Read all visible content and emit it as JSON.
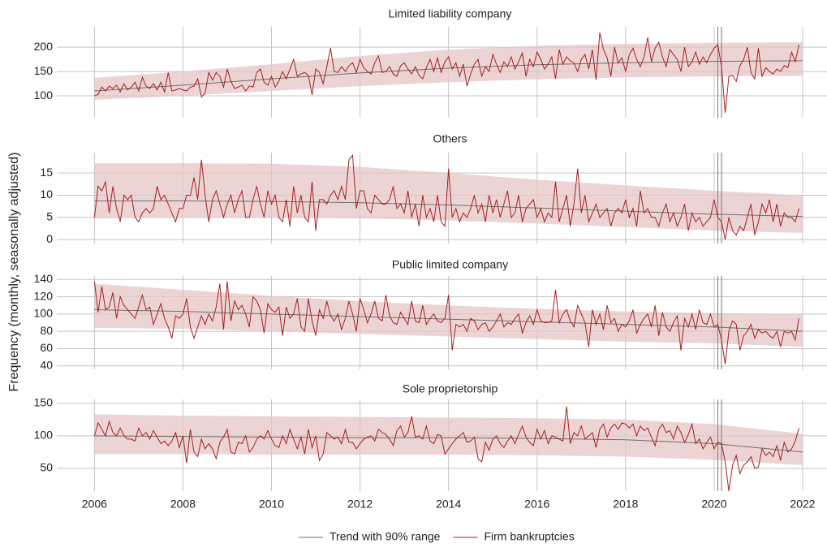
{
  "chart_data": {
    "type": "line",
    "y_label": "Frequency (monthly, seasonally adjusted)",
    "xlim": [
      2005.15,
      2022.55
    ],
    "xticks": [
      2006,
      2008,
      2010,
      2012,
      2014,
      2016,
      2018,
      2020,
      2022
    ],
    "vlines": [
      2020.083,
      2020.167
    ],
    "grid": true,
    "legend": [
      {
        "name": "Trend with 90% range",
        "color": "#6e6e6e",
        "band_color": "#e6c6c6"
      },
      {
        "name": "Firm bankruptcies",
        "color": "#a3201f"
      }
    ],
    "x": [
      2006,
      2006.083,
      2006.167,
      2006.25,
      2006.333,
      2006.417,
      2006.5,
      2006.583,
      2006.667,
      2006.75,
      2006.833,
      2006.917,
      2007,
      2007.083,
      2007.167,
      2007.25,
      2007.333,
      2007.417,
      2007.5,
      2007.583,
      2007.667,
      2007.75,
      2007.833,
      2007.917,
      2008,
      2008.083,
      2008.167,
      2008.25,
      2008.333,
      2008.417,
      2008.5,
      2008.583,
      2008.667,
      2008.75,
      2008.833,
      2008.917,
      2009,
      2009.083,
      2009.167,
      2009.25,
      2009.333,
      2009.417,
      2009.5,
      2009.583,
      2009.667,
      2009.75,
      2009.833,
      2009.917,
      2010,
      2010.083,
      2010.167,
      2010.25,
      2010.333,
      2010.417,
      2010.5,
      2010.583,
      2010.667,
      2010.75,
      2010.833,
      2010.917,
      2011,
      2011.083,
      2011.167,
      2011.25,
      2011.333,
      2011.417,
      2011.5,
      2011.583,
      2011.667,
      2011.75,
      2011.833,
      2011.917,
      2012,
      2012.083,
      2012.167,
      2012.25,
      2012.333,
      2012.417,
      2012.5,
      2012.583,
      2012.667,
      2012.75,
      2012.833,
      2012.917,
      2013,
      2013.083,
      2013.167,
      2013.25,
      2013.333,
      2013.417,
      2013.5,
      2013.583,
      2013.667,
      2013.75,
      2013.833,
      2013.917,
      2014,
      2014.083,
      2014.167,
      2014.25,
      2014.333,
      2014.417,
      2014.5,
      2014.583,
      2014.667,
      2014.75,
      2014.833,
      2014.917,
      2015,
      2015.083,
      2015.167,
      2015.25,
      2015.333,
      2015.417,
      2015.5,
      2015.583,
      2015.667,
      2015.75,
      2015.833,
      2015.917,
      2016,
      2016.083,
      2016.167,
      2016.25,
      2016.333,
      2016.417,
      2016.5,
      2016.583,
      2016.667,
      2016.75,
      2016.833,
      2016.917,
      2017,
      2017.083,
      2017.167,
      2017.25,
      2017.333,
      2017.417,
      2017.5,
      2017.583,
      2017.667,
      2017.75,
      2017.833,
      2017.917,
      2018,
      2018.083,
      2018.167,
      2018.25,
      2018.333,
      2018.417,
      2018.5,
      2018.583,
      2018.667,
      2018.75,
      2018.833,
      2018.917,
      2019,
      2019.083,
      2019.167,
      2019.25,
      2019.333,
      2019.417,
      2019.5,
      2019.583,
      2019.667,
      2019.75,
      2019.833,
      2019.917,
      2020,
      2020.083,
      2020.167,
      2020.25,
      2020.333,
      2020.417,
      2020.5,
      2020.583,
      2020.667,
      2020.75,
      2020.833,
      2020.917,
      2021,
      2021.083,
      2021.167,
      2021.25,
      2021.333,
      2021.417,
      2021.5,
      2021.583,
      2021.667,
      2021.75,
      2021.833,
      2021.917
    ],
    "panels": [
      {
        "title": "Limited liability company",
        "ylim": [
          55,
          242
        ],
        "yticks": [
          100,
          150,
          200
        ],
        "values": [
          100,
          103,
          118,
          110,
          120,
          115,
          122,
          108,
          125,
          112,
          118,
          128,
          110,
          138,
          120,
          115,
          125,
          112,
          128,
          108,
          148,
          110,
          112,
          115,
          112,
          110,
          118,
          120,
          135,
          98,
          105,
          148,
          132,
          148,
          140,
          118,
          155,
          130,
          115,
          118,
          122,
          110,
          120,
          118,
          148,
          155,
          128,
          122,
          140,
          118,
          130,
          150,
          135,
          155,
          175,
          140,
          145,
          148,
          142,
          102,
          155,
          148,
          125,
          160,
          198,
          150,
          148,
          160,
          150,
          162,
          168,
          148,
          175,
          158,
          150,
          145,
          168,
          182,
          148,
          150,
          160,
          145,
          140,
          162,
          168,
          155,
          145,
          160,
          142,
          135,
          158,
          175,
          150,
          178,
          148,
          170,
          180,
          155,
          168,
          140,
          165,
          120,
          145,
          165,
          175,
          140,
          160,
          150,
          185,
          165,
          148,
          170,
          160,
          180,
          155,
          170,
          188,
          140,
          175,
          160,
          190,
          175,
          155,
          165,
          180,
          135,
          195,
          165,
          180,
          172,
          168,
          150,
          175,
          185,
          155,
          195,
          133,
          230,
          195,
          178,
          140,
          200,
          168,
          178,
          150,
          185,
          198,
          175,
          160,
          180,
          220,
          170,
          198,
          210,
          180,
          160,
          195,
          185,
          175,
          150,
          200,
          160,
          170,
          190,
          165,
          180,
          168,
          185,
          198,
          205,
          160,
          65,
          140,
          142,
          130,
          162,
          175,
          200,
          148,
          135,
          198,
          140,
          158,
          150,
          145,
          155,
          150,
          162,
          158,
          190,
          170,
          205
        ],
        "trend": {
          "x": [
            2006,
            2008,
            2010,
            2012,
            2014,
            2016,
            2018,
            2020,
            2022
          ],
          "values": [
            110,
            122,
            135,
            147,
            157,
            164,
            168,
            171,
            172
          ],
          "lower": [
            92,
            100,
            110,
            120,
            128,
            134,
            138,
            140,
            141
          ],
          "upper": [
            137,
            150,
            165,
            182,
            195,
            203,
            207,
            209,
            210
          ]
        }
      },
      {
        "title": "Others",
        "ylim": [
          -0.9,
          19.6
        ],
        "yticks": [
          0,
          5,
          10,
          15
        ],
        "values": [
          5,
          12,
          11,
          13,
          6,
          12,
          7,
          4,
          10,
          9,
          10,
          5,
          4,
          6,
          7,
          6,
          7,
          12,
          9,
          10,
          8,
          6,
          4,
          7,
          7,
          10,
          10,
          14,
          9,
          18,
          10,
          4,
          9,
          11,
          8,
          5,
          8,
          10,
          6,
          9,
          11,
          5,
          5,
          9,
          12,
          8,
          5,
          11,
          8,
          10,
          5,
          4,
          9,
          3,
          12,
          6,
          10,
          5,
          4,
          13,
          2,
          9,
          9,
          8,
          10,
          11,
          9,
          12,
          9,
          18,
          19,
          7,
          11,
          11,
          7,
          6,
          10,
          9,
          8,
          8,
          9,
          12,
          7,
          8,
          6,
          11,
          5,
          8,
          3,
          10,
          5,
          7,
          4,
          10,
          4,
          3,
          16,
          5,
          7,
          4,
          6,
          5,
          7,
          10,
          6,
          8,
          4,
          10,
          6,
          9,
          5,
          8,
          11,
          5,
          6,
          10,
          4,
          7,
          8,
          9,
          5,
          7,
          4,
          6,
          5,
          13,
          4,
          7,
          10,
          3,
          8,
          16,
          6,
          10,
          4,
          6,
          8,
          5,
          6,
          7,
          3,
          6,
          7,
          6,
          9,
          5,
          7,
          3,
          11,
          6,
          7,
          5,
          5,
          3,
          6,
          8,
          4,
          6,
          3,
          5,
          8,
          2,
          6,
          4,
          5,
          3,
          4,
          5,
          9,
          5,
          4,
          0,
          5,
          2,
          1,
          3,
          2,
          5,
          8,
          1,
          4,
          8,
          6,
          9,
          4,
          8,
          3,
          6,
          5,
          5,
          4,
          7
        ],
        "trend": {
          "x": [
            2006,
            2008,
            2010,
            2012,
            2014,
            2016,
            2018,
            2020,
            2022
          ],
          "values": [
            8.7,
            8.7,
            8.6,
            8.3,
            7.8,
            7.1,
            6.4,
            5.7,
            5.2
          ],
          "lower": [
            4.8,
            5,
            5,
            4.8,
            4.3,
            3.6,
            2.8,
            2,
            1.5
          ],
          "upper": [
            17.2,
            17.2,
            17.1,
            16.4,
            15,
            13.5,
            12.2,
            11,
            10
          ]
        }
      },
      {
        "title": "Public limited company",
        "ylim": [
          36,
          144
        ],
        "yticks": [
          40,
          60,
          80,
          100,
          120,
          140
        ],
        "values": [
          138,
          102,
          132,
          105,
          108,
          125,
          95,
          120,
          110,
          105,
          100,
          95,
          108,
          122,
          105,
          108,
          88,
          100,
          112,
          95,
          85,
          72,
          98,
          95,
          100,
          118,
          85,
          72,
          85,
          98,
          88,
          100,
          92,
          108,
          135,
          82,
          138,
          92,
          115,
          105,
          110,
          100,
          85,
          120,
          115,
          105,
          78,
          112,
          105,
          102,
          108,
          75,
          108,
          95,
          100,
          118,
          85,
          80,
          118,
          92,
          75,
          105,
          95,
          115,
          98,
          92,
          100,
          82,
          95,
          115,
          100,
          80,
          118,
          105,
          90,
          100,
          115,
          95,
          92,
          122,
          98,
          90,
          88,
          102,
          95,
          88,
          115,
          92,
          90,
          110,
          88,
          95,
          100,
          92,
          90,
          95,
          122,
          58,
          88,
          85,
          88,
          80,
          95,
          92,
          82,
          88,
          90,
          80,
          85,
          92,
          100,
          85,
          90,
          88,
          95,
          100,
          78,
          90,
          98,
          88,
          105,
          92,
          90,
          90,
          92,
          128,
          90,
          100,
          105,
          92,
          85,
          110,
          100,
          90,
          62,
          105,
          88,
          100,
          82,
          110,
          90,
          95,
          80,
          88,
          85,
          92,
          105,
          78,
          88,
          95,
          100,
          85,
          110,
          75,
          102,
          85,
          80,
          90,
          98,
          58,
          95,
          85,
          100,
          82,
          105,
          90,
          88,
          100,
          85,
          88,
          70,
          42,
          80,
          92,
          88,
          58,
          75,
          80,
          88,
          72,
          82,
          78,
          80,
          75,
          72,
          80,
          62,
          80,
          78,
          80,
          70,
          95
        ],
        "trend": {
          "x": [
            2006,
            2008,
            2010,
            2012,
            2014,
            2016,
            2018,
            2020,
            2022
          ],
          "values": [
            105,
            103,
            100,
            97,
            94,
            91,
            88,
            85,
            80
          ],
          "lower": [
            84,
            83,
            80,
            77,
            74,
            71,
            68,
            66,
            62
          ],
          "upper": [
            135,
            128,
            121,
            115,
            110,
            106,
            103,
            101,
            100
          ]
        }
      },
      {
        "title": "Sole proprietorship",
        "ylim": [
          15,
          156
        ],
        "yticks": [
          50,
          100,
          150
        ],
        "values": [
          100,
          120,
          110,
          100,
          122,
          105,
          100,
          112,
          100,
          95,
          95,
          92,
          112,
          100,
          105,
          95,
          108,
          98,
          88,
          92,
          85,
          92,
          105,
          82,
          100,
          58,
          110,
          75,
          68,
          95,
          80,
          88,
          80,
          65,
          90,
          98,
          110,
          75,
          72,
          90,
          88,
          100,
          75,
          82,
          95,
          100,
          95,
          108,
          95,
          85,
          82,
          100,
          88,
          110,
          95,
          80,
          98,
          72,
          110,
          82,
          100,
          62,
          72,
          105,
          100,
          95,
          98,
          88,
          110,
          90,
          90,
          80,
          88,
          95,
          98,
          100,
          92,
          110,
          105,
          102,
          95,
          85,
          108,
          115,
          98,
          105,
          130,
          98,
          100,
          95,
          115,
          92,
          88,
          102,
          100,
          72,
          80,
          88,
          95,
          100,
          105,
          90,
          92,
          98,
          65,
          60,
          90,
          78,
          95,
          100,
          88,
          82,
          92,
          100,
          88,
          102,
          115,
          98,
          90,
          85,
          110,
          95,
          108,
          88,
          100,
          98,
          95,
          92,
          145,
          88,
          105,
          100,
          115,
          95,
          100,
          105,
          82,
          110,
          118,
          98,
          112,
          118,
          110,
          120,
          118,
          112,
          118,
          100,
          115,
          108,
          112,
          98,
          85,
          110,
          118,
          105,
          108,
          95,
          115,
          105,
          90,
          102,
          118,
          88,
          95,
          80,
          90,
          98,
          80,
          90,
          88,
          60,
          15,
          55,
          70,
          42,
          55,
          60,
          68,
          50,
          52,
          80,
          70,
          75,
          68,
          85,
          62,
          90,
          75,
          80,
          92,
          112
        ],
        "trend": {
          "x": [
            2006,
            2008,
            2010,
            2012,
            2014,
            2016,
            2018,
            2020,
            2022
          ],
          "values": [
            100,
            99,
            98,
            97,
            97,
            96,
            94,
            88,
            75
          ],
          "lower": [
            72,
            72,
            71,
            71,
            71,
            70,
            68,
            63,
            55
          ],
          "upper": [
            133,
            131,
            130,
            129,
            128,
            127,
            125,
            118,
            103
          ]
        }
      }
    ]
  }
}
